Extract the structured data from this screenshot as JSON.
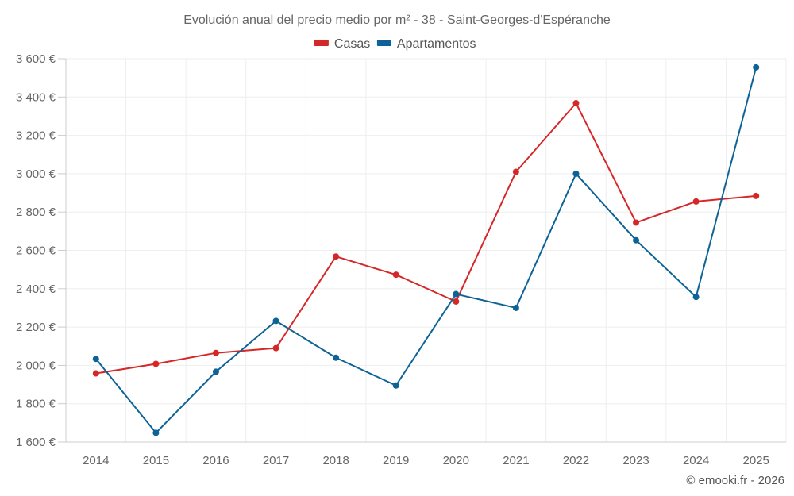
{
  "chart_data": {
    "type": "line",
    "title": "Evolución anual del precio medio por m² - 38 - Saint-Georges-d'Espéranche",
    "xlabel": "",
    "ylabel": "",
    "categories": [
      "2014",
      "2015",
      "2016",
      "2017",
      "2018",
      "2019",
      "2020",
      "2021",
      "2022",
      "2023",
      "2024",
      "2025"
    ],
    "ylim": [
      1600,
      3600
    ],
    "y_ticks": [
      1600,
      1800,
      2000,
      2200,
      2400,
      2600,
      2800,
      3000,
      3200,
      3400,
      3600
    ],
    "y_tick_labels": [
      "1 600 €",
      "1 800 €",
      "2 000 €",
      "2 200 €",
      "2 400 €",
      "2 600 €",
      "2 800 €",
      "3 000 €",
      "3 200 €",
      "3 400 €",
      "3 600 €"
    ],
    "grid": true,
    "legend_position": "top-center",
    "series": [
      {
        "name": "Casas",
        "color": "#d62728",
        "values": [
          1958,
          2008,
          2065,
          2090,
          2568,
          2473,
          2333,
          3010,
          3368,
          2745,
          2855,
          2884
        ]
      },
      {
        "name": "Apartamentos",
        "color": "#0d6395",
        "values": [
          2034,
          1648,
          1967,
          2232,
          2040,
          1895,
          2372,
          2300,
          3000,
          2653,
          2357,
          3555
        ]
      }
    ]
  },
  "footer": {
    "credit": "© emooki.fr - 2026"
  }
}
